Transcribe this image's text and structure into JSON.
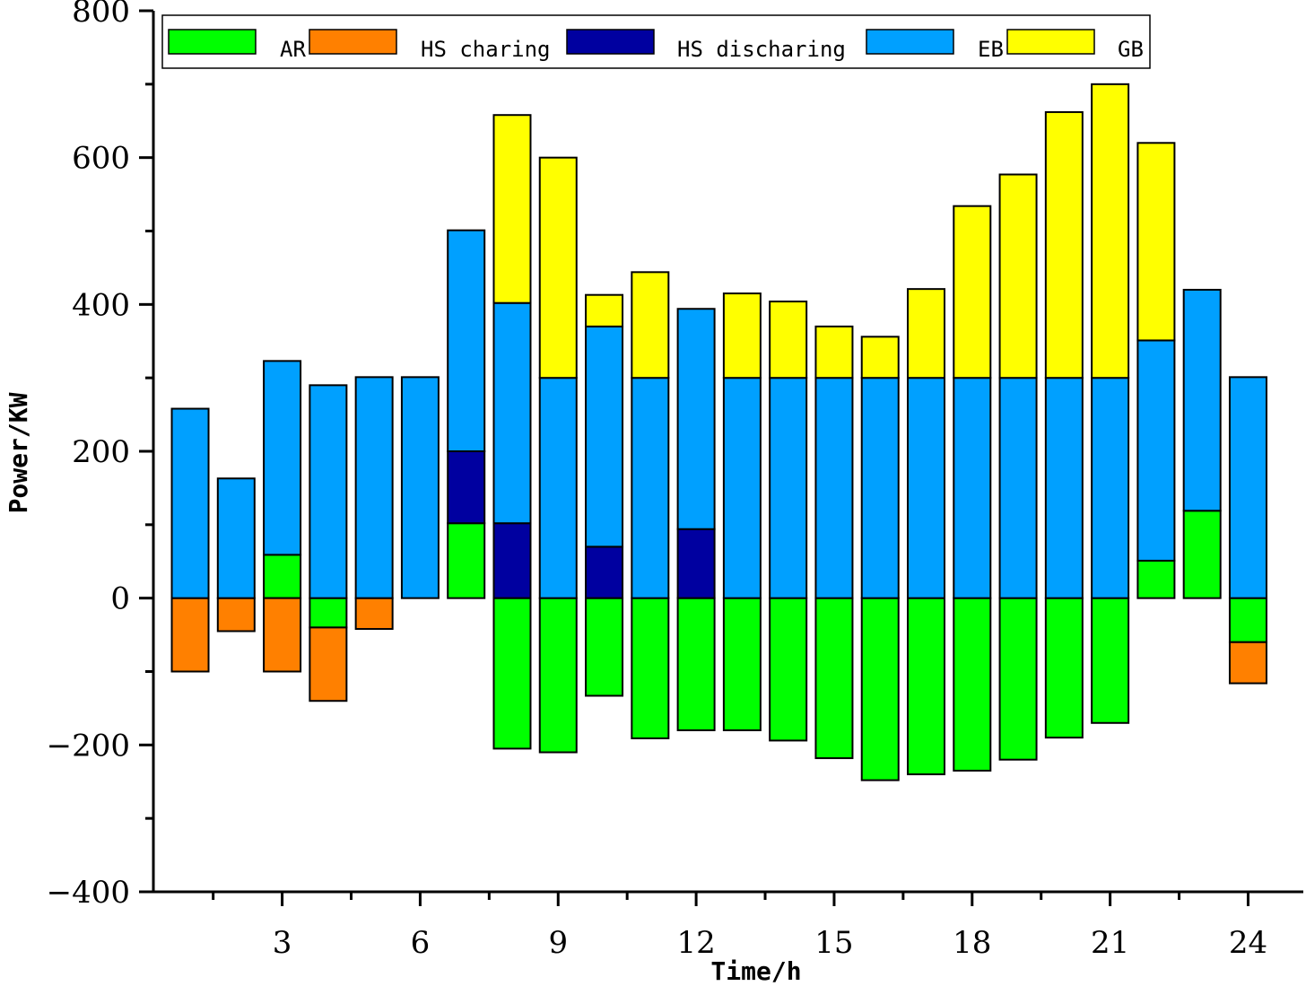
{
  "chart_data": {
    "type": "bar",
    "stacked": true,
    "xlabel": "Time/h",
    "ylabel": "Power/KW",
    "ylim": [
      -400,
      800
    ],
    "xlim": [
      0.2,
      25.2
    ],
    "y_ticks": [
      -400,
      -200,
      0,
      200,
      400,
      600,
      800
    ],
    "x_ticks": [
      3,
      6,
      9,
      12,
      15,
      18,
      21,
      24
    ],
    "legend_position": "top",
    "categories": [
      1,
      2,
      3,
      4,
      5,
      6,
      7,
      8,
      9,
      10,
      11,
      12,
      13,
      14,
      15,
      16,
      17,
      18,
      19,
      20,
      21,
      22,
      23,
      24
    ],
    "series": [
      {
        "name": "AR",
        "color": "#00ff00",
        "values": [
          0,
          0,
          59,
          -40,
          0,
          0,
          102,
          -205,
          -210,
          -133,
          -191,
          -180,
          -180,
          -194,
          -218,
          -248,
          -240,
          -235,
          -220,
          -190,
          -170,
          51,
          119,
          -60
        ]
      },
      {
        "name": "HS charing",
        "color": "#ff8000",
        "values": [
          -100,
          -45,
          -100,
          -100,
          -42,
          0,
          0,
          0,
          0,
          0,
          0,
          0,
          0,
          0,
          0,
          0,
          0,
          0,
          0,
          0,
          0,
          0,
          0,
          -56
        ]
      },
      {
        "name": "HS discharing",
        "color": "#0000a0",
        "values": [
          0,
          0,
          0,
          0,
          0,
          0,
          98,
          102,
          0,
          70,
          0,
          94,
          0,
          0,
          0,
          0,
          0,
          0,
          0,
          0,
          0,
          0,
          0,
          0
        ]
      },
      {
        "name": "EB",
        "color": "#00a0ff",
        "values": [
          258,
          163,
          264,
          290,
          301,
          301,
          301,
          300,
          300,
          300,
          300,
          300,
          300,
          300,
          300,
          300,
          300,
          300,
          300,
          300,
          300,
          300,
          301,
          301
        ]
      },
      {
        "name": "GB",
        "color": "#ffff00",
        "values": [
          0,
          0,
          0,
          0,
          0,
          0,
          0,
          256,
          300,
          43,
          144,
          0,
          115,
          104,
          70,
          56,
          121,
          234,
          277,
          362,
          400,
          269,
          0,
          0
        ]
      }
    ]
  }
}
